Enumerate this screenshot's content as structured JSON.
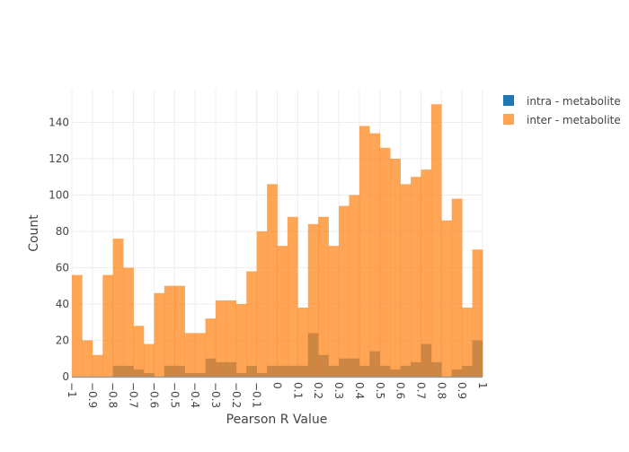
{
  "chart_data": {
    "type": "bar",
    "subtype": "overlaid-histogram",
    "title": "",
    "xlabel": "Pearson R Value",
    "ylabel": "Count",
    "xlim": [
      -1,
      1
    ],
    "ylim": [
      0,
      158
    ],
    "bin_width": 0.05,
    "bin_starts": [
      -1,
      -0.95,
      -0.9,
      -0.85,
      -0.8,
      -0.75,
      -0.7,
      -0.65,
      -0.6,
      -0.55,
      -0.5,
      -0.45,
      -0.4,
      -0.35,
      -0.3,
      -0.25,
      -0.2,
      -0.15,
      -0.1,
      -0.05,
      0,
      0.05,
      0.1,
      0.15,
      0.2,
      0.25,
      0.3,
      0.35,
      0.4,
      0.45,
      0.5,
      0.55,
      0.6,
      0.65,
      0.7,
      0.75,
      0.8,
      0.85,
      0.9,
      0.95
    ],
    "x_ticks": [
      "−1",
      "−0.9",
      "−0.8",
      "−0.7",
      "−0.6",
      "−0.5",
      "−0.4",
      "−0.3",
      "−0.2",
      "−0.1",
      "0",
      "0.1",
      "0.2",
      "0.3",
      "0.4",
      "0.5",
      "0.6",
      "0.7",
      "0.8",
      "0.9",
      "1"
    ],
    "x_tick_values": [
      -1,
      -0.9,
      -0.8,
      -0.7,
      -0.6,
      -0.5,
      -0.4,
      -0.3,
      -0.2,
      -0.1,
      0,
      0.1,
      0.2,
      0.3,
      0.4,
      0.5,
      0.6,
      0.7,
      0.8,
      0.9,
      1
    ],
    "y_ticks": [
      "0",
      "20",
      "40",
      "60",
      "80",
      "100",
      "120",
      "140"
    ],
    "y_tick_values": [
      0,
      20,
      40,
      60,
      80,
      100,
      120,
      140
    ],
    "grid": true,
    "legend_position": "top-right",
    "series": [
      {
        "name": "intra - metabolite",
        "color": "#1f77b4",
        "values": [
          0,
          0,
          0,
          0,
          6,
          6,
          4,
          2,
          0,
          6,
          6,
          2,
          2,
          10,
          8,
          8,
          2,
          6,
          2,
          6,
          6,
          6,
          6,
          24,
          12,
          6,
          10,
          10,
          6,
          14,
          6,
          4,
          6,
          8,
          18,
          8,
          0,
          4,
          6,
          20
        ]
      },
      {
        "name": "inter - metabolite",
        "color": "#ff7f0e",
        "values": [
          56,
          20,
          12,
          56,
          76,
          60,
          28,
          18,
          46,
          50,
          50,
          24,
          24,
          32,
          42,
          42,
          40,
          58,
          80,
          106,
          72,
          88,
          38,
          84,
          88,
          72,
          94,
          100,
          138,
          134,
          126,
          120,
          106,
          110,
          114,
          150,
          86,
          98,
          38,
          70
        ]
      }
    ]
  }
}
